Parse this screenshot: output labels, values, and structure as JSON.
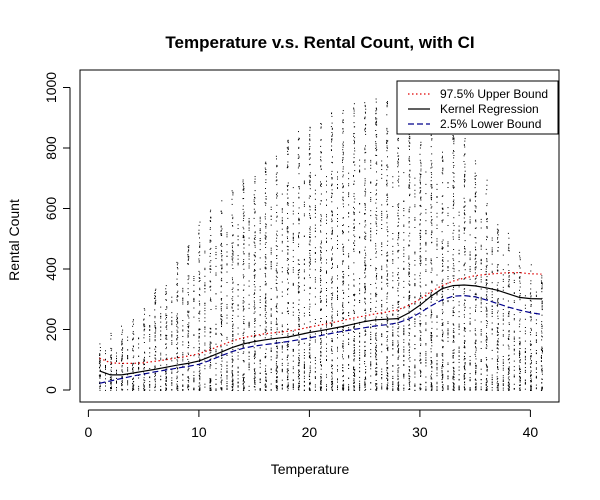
{
  "chart_data": {
    "type": "scatter",
    "title": "Temperature v.s. Rental Count, with CI",
    "xlabel": "Temperature",
    "ylabel": "Rental Count",
    "xlim": [
      0,
      42
    ],
    "ylim": [
      0,
      1000
    ],
    "xticks": [
      0,
      10,
      20,
      30,
      40
    ],
    "yticks": [
      0,
      200,
      400,
      600,
      800,
      1000
    ],
    "grid": false,
    "legend_position": "top-right",
    "scatter_points": {
      "description": "dense vertical strips of individual observations at each temperature value",
      "x_values": [
        1,
        2,
        3,
        4,
        5,
        6,
        7,
        8,
        9,
        10,
        11,
        12,
        13,
        14,
        15,
        16,
        17,
        18,
        19,
        20,
        21,
        22,
        23,
        24,
        25,
        26,
        27,
        28,
        29,
        30,
        31,
        32,
        33,
        34,
        35,
        36,
        37,
        38,
        39,
        40,
        41
      ],
      "y_max_by_x": [
        160,
        190,
        220,
        240,
        280,
        340,
        380,
        440,
        500,
        560,
        600,
        640,
        670,
        700,
        730,
        760,
        800,
        830,
        860,
        880,
        900,
        920,
        940,
        950,
        960,
        970,
        970,
        960,
        950,
        940,
        900,
        880,
        860,
        840,
        760,
        700,
        600,
        520,
        460,
        420,
        400
      ],
      "color": "#000000"
    },
    "series": [
      {
        "name": "97.5% Upper Bound",
        "style": "dotted",
        "color": "#e00000",
        "x": [
          1,
          2,
          3,
          4,
          5,
          6,
          7,
          8,
          9,
          10,
          11,
          12,
          13,
          14,
          15,
          16,
          17,
          18,
          19,
          20,
          21,
          22,
          23,
          24,
          25,
          26,
          27,
          28,
          29,
          30,
          31,
          32,
          33,
          34,
          35,
          36,
          37,
          38,
          39,
          40,
          41
        ],
        "values": [
          105,
          90,
          88,
          88,
          90,
          95,
          100,
          106,
          112,
          120,
          133,
          148,
          162,
          173,
          180,
          186,
          190,
          194,
          200,
          208,
          215,
          222,
          230,
          238,
          245,
          252,
          258,
          265,
          280,
          300,
          325,
          345,
          360,
          370,
          378,
          382,
          385,
          388,
          388,
          384,
          383
        ]
      },
      {
        "name": "Kernel Regression",
        "style": "solid",
        "color": "#000000",
        "x": [
          1,
          2,
          3,
          4,
          5,
          6,
          7,
          8,
          9,
          10,
          11,
          12,
          13,
          14,
          15,
          16,
          17,
          18,
          19,
          20,
          21,
          22,
          23,
          24,
          25,
          26,
          27,
          28,
          29,
          30,
          31,
          32,
          33,
          34,
          35,
          36,
          37,
          38,
          39,
          40,
          41
        ],
        "values": [
          63,
          50,
          50,
          56,
          62,
          68,
          75,
          82,
          88,
          96,
          110,
          125,
          140,
          152,
          160,
          166,
          171,
          175,
          182,
          190,
          196,
          203,
          210,
          218,
          226,
          232,
          234,
          236,
          255,
          280,
          310,
          335,
          345,
          347,
          344,
          338,
          330,
          318,
          306,
          302,
          301
        ]
      },
      {
        "name": "2.5% Lower Bound",
        "style": "dashed",
        "color": "#00008b",
        "x": [
          1,
          2,
          3,
          4,
          5,
          6,
          7,
          8,
          9,
          10,
          11,
          12,
          13,
          14,
          15,
          16,
          17,
          18,
          19,
          20,
          21,
          22,
          23,
          24,
          25,
          26,
          27,
          28,
          29,
          30,
          31,
          32,
          33,
          34,
          35,
          36,
          37,
          38,
          39,
          40,
          41
        ],
        "values": [
          22,
          30,
          38,
          46,
          53,
          60,
          66,
          72,
          78,
          85,
          98,
          113,
          127,
          138,
          145,
          150,
          155,
          160,
          166,
          172,
          180,
          187,
          194,
          200,
          206,
          212,
          216,
          222,
          235,
          255,
          278,
          298,
          310,
          312,
          308,
          298,
          286,
          274,
          264,
          256,
          250
        ]
      }
    ]
  }
}
